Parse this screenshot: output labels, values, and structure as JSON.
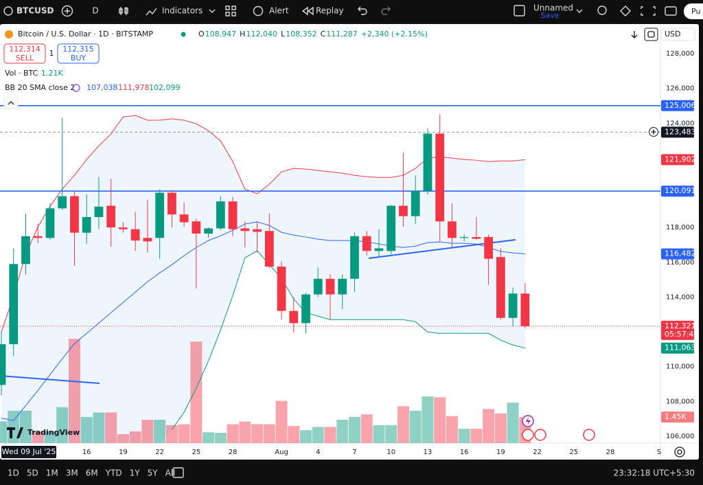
{
  "toolbar": {
    "symbol": "BTCUSD",
    "interval": "D",
    "indicators": "Indicators",
    "alert": "Alert",
    "replay": "Replay",
    "layout_name": "Unnamed",
    "save": "Save",
    "publish": "Pu"
  },
  "legend": {
    "title": "Bitcoin / U.S. Dollar · 1D · BITSTAMP",
    "ohlc": [
      {
        "label": "O",
        "value": "108,947"
      },
      {
        "label": "H",
        "value": "112,040"
      },
      {
        "label": "L",
        "value": "108,352"
      },
      {
        "label": "C",
        "value": "111,287"
      }
    ],
    "change": "+2,340 (+2.15%)",
    "sell": {
      "price": "112,314",
      "label": "SELL"
    },
    "spread": "1",
    "buy": {
      "price": "112,315",
      "label": "BUY"
    },
    "volume": {
      "name": "Vol · BTC",
      "value": "1.21K"
    },
    "bb": {
      "name": "BB 20 SMA close 2",
      "basis": "107,038",
      "upper": "111,978",
      "lower": "102,099"
    }
  },
  "currency": "USD",
  "logo": "TradingView",
  "chart_data": {
    "type": "candlestick",
    "crosshair_label": "Wed 09 Jul '25",
    "x": [
      "2025-07-09",
      "2025-07-10",
      "2025-07-11",
      "2025-07-12",
      "2025-07-13",
      "2025-07-14",
      "2025-07-15",
      "2025-07-16",
      "2025-07-17",
      "2025-07-18",
      "2025-07-19",
      "2025-07-20",
      "2025-07-21",
      "2025-07-22",
      "2025-07-23",
      "2025-07-24",
      "2025-07-25",
      "2025-07-26",
      "2025-07-27",
      "2025-07-28",
      "2025-07-29",
      "2025-07-30",
      "2025-07-31",
      "2025-08-01",
      "2025-08-02",
      "2025-08-03",
      "2025-08-04",
      "2025-08-05",
      "2025-08-06",
      "2025-08-07",
      "2025-08-08",
      "2025-08-09",
      "2025-08-10",
      "2025-08-11",
      "2025-08-12",
      "2025-08-13",
      "2025-08-14",
      "2025-08-15",
      "2025-08-16",
      "2025-08-17",
      "2025-08-18",
      "2025-08-19",
      "2025-08-20",
      "2025-08-21"
    ],
    "open": [
      108947,
      111287,
      115900,
      117500,
      117400,
      119100,
      119800,
      117700,
      118600,
      119250,
      118000,
      117900,
      117400,
      117400,
      120000,
      118750,
      118350,
      117650,
      117950,
      119500,
      117950,
      117900,
      117800,
      115750,
      113200,
      112500,
      114150,
      115050,
      114150,
      115050,
      117500,
      116650,
      116650,
      119250,
      118650,
      120100,
      123400,
      118350,
      117400,
      117450,
      117450,
      116300,
      112800,
      114200
    ],
    "high": [
      112040,
      116800,
      118800,
      118200,
      119400,
      124300,
      120100,
      119900,
      120900,
      120800,
      118300,
      118900,
      119600,
      120200,
      120100,
      119450,
      118500,
      118000,
      119800,
      119750,
      118350,
      118350,
      118800,
      116050,
      114000,
      114250,
      115700,
      115300,
      115300,
      117700,
      117800,
      117900,
      119300,
      122300,
      121000,
      123700,
      124500,
      119400,
      117600,
      118600,
      117600,
      116800,
      114550,
      114800
    ],
    "low": [
      108352,
      110600,
      115300,
      117100,
      117300,
      119000,
      115800,
      117050,
      117900,
      116900,
      117700,
      116650,
      116550,
      116200,
      118000,
      118050,
      114500,
      117400,
      117850,
      117500,
      116850,
      116550,
      115650,
      112700,
      111950,
      111900,
      114000,
      112700,
      113300,
      114300,
      116400,
      116300,
      116450,
      118050,
      118200,
      119900,
      117200,
      116850,
      117200,
      117300,
      114700,
      112700,
      112300,
      112200
    ],
    "close": [
      111287,
      115900,
      117500,
      117400,
      119100,
      119800,
      117700,
      118600,
      119200,
      118000,
      117900,
      117250,
      117200,
      120000,
      118750,
      118300,
      117650,
      117950,
      119500,
      117900,
      117800,
      117750,
      115750,
      113200,
      112500,
      114150,
      115050,
      114150,
      115050,
      117500,
      116650,
      116800,
      119250,
      118650,
      120100,
      123400,
      118350,
      117400,
      117450,
      117350,
      116200,
      112800,
      114200,
      112321
    ],
    "volume": [
      1210,
      1800,
      1800,
      650,
      650,
      2000,
      5800,
      1450,
      1700,
      1700,
      500,
      650,
      1300,
      1300,
      1000,
      1050,
      5650,
      600,
      570,
      1050,
      1200,
      1050,
      1050,
      2350,
      950,
      720,
      900,
      900,
      1300,
      1450,
      1600,
      1000,
      1000,
      2050,
      1800,
      2600,
      2550,
      1500,
      800,
      800,
      1900,
      1650,
      2250,
      1450
    ],
    "bb_upper": [
      111978,
      114090,
      116460,
      118040,
      119220,
      120210,
      121000,
      121910,
      122700,
      123380,
      124360,
      124440,
      124170,
      124170,
      124250,
      124170,
      123970,
      123570,
      122980,
      121790,
      120210,
      119940,
      120490,
      121200,
      121400,
      121360,
      121280,
      121200,
      121120,
      121000,
      120920,
      120880,
      120880,
      121000,
      121400,
      121990,
      122070,
      121990,
      121910,
      121870,
      121790,
      121830,
      121830,
      121902
    ],
    "bb_basis": [
      107038,
      106890,
      107760,
      108630,
      109540,
      110450,
      111320,
      111910,
      112500,
      113100,
      113690,
      114280,
      114880,
      115390,
      115860,
      116380,
      116850,
      117250,
      117520,
      117840,
      118200,
      118320,
      118120,
      117720,
      117560,
      117450,
      117330,
      117250,
      117250,
      117250,
      117170,
      117050,
      116930,
      116850,
      116930,
      117130,
      117170,
      117090,
      117090,
      117050,
      116850,
      116620,
      116540,
      116482
    ],
    "bb_lower": [
      null,
      null,
      null,
      null,
      null,
      null,
      null,
      null,
      null,
      null,
      null,
      null,
      null,
      null,
      106380,
      107370,
      108750,
      110330,
      112110,
      114090,
      116260,
      116660,
      115860,
      115070,
      113890,
      113100,
      112900,
      112700,
      112700,
      112700,
      112700,
      112700,
      112700,
      112700,
      112580,
      111990,
      111910,
      111910,
      111910,
      111910,
      111910,
      111520,
      111240,
      111063
    ],
    "colors": {
      "up": "#089981",
      "down": "#f23645",
      "upper": "#f23645",
      "basis": "#2962ff",
      "lower": "#089981",
      "band": "#e3eefc"
    },
    "xlim": [
      "2025-07-09",
      "2025-09-01"
    ],
    "xticks": [
      {
        "value": "2025-07-16",
        "label": "16"
      },
      {
        "value": "2025-07-19",
        "label": "19"
      },
      {
        "value": "2025-07-22",
        "label": "22"
      },
      {
        "value": "2025-07-25",
        "label": "25"
      },
      {
        "value": "2025-07-28",
        "label": "28"
      },
      {
        "value": "2025-08-01",
        "label": "Aug"
      },
      {
        "value": "2025-08-04",
        "label": "4"
      },
      {
        "value": "2025-08-07",
        "label": "7"
      },
      {
        "value": "2025-08-10",
        "label": "10"
      },
      {
        "value": "2025-08-13",
        "label": "13"
      },
      {
        "value": "2025-08-16",
        "label": "16"
      },
      {
        "value": "2025-08-19",
        "label": "19"
      },
      {
        "value": "2025-08-22",
        "label": "22"
      },
      {
        "value": "2025-08-25",
        "label": "25"
      },
      {
        "value": "2025-08-28",
        "label": "28"
      },
      {
        "value": "2025-09-01",
        "label": "S"
      }
    ],
    "ylim": [
      105600,
      129700
    ],
    "yticks": [
      {
        "value": 128000,
        "label": "128,000"
      },
      {
        "value": 126000,
        "label": "126,000"
      },
      {
        "value": 124000,
        "label": "124,000"
      },
      {
        "value": 122000,
        "label": "122,000"
      },
      {
        "value": 120000,
        "label": "120,000"
      },
      {
        "value": 118000,
        "label": "118,000"
      },
      {
        "value": 116000,
        "label": "116,000"
      },
      {
        "value": 114000,
        "label": "114,000"
      },
      {
        "value": 112000,
        "label": "112,000"
      },
      {
        "value": 110000,
        "label": "110,000"
      },
      {
        "value": 108000,
        "label": "108,000"
      },
      {
        "value": 106000,
        "label": "106,000"
      }
    ],
    "grid": false,
    "volume_ylim": [
      0,
      6500
    ],
    "price_labels": [
      {
        "value": 125006,
        "label": "125,006",
        "color": "#2962ff",
        "line": "solid"
      },
      {
        "value": 123483,
        "label": "123,483",
        "color": "#131722",
        "line": "dashed"
      },
      {
        "value": 121902,
        "label": "121,902",
        "color": "#f23645"
      },
      {
        "value": 120091,
        "label": "120,091",
        "color": "#2962ff",
        "line": "solid"
      },
      {
        "value": 116482,
        "label": "116,482",
        "color": "#2962ff"
      },
      {
        "value": 112321,
        "label": "112,321",
        "countdown": "05:57:42",
        "color": "#f23645",
        "line": "dotted"
      },
      {
        "value": 111063,
        "label": "111,063",
        "color": "#089981"
      }
    ],
    "volume_label": {
      "value": 1450,
      "label": "1.45K",
      "color": "#f77c80"
    }
  },
  "bottom_bar": {
    "ranges": [
      "1D",
      "5D",
      "1M",
      "3M",
      "6M",
      "YTD",
      "1Y",
      "5Y",
      "All"
    ],
    "clock": "23:32:18 UTC+5:30"
  }
}
